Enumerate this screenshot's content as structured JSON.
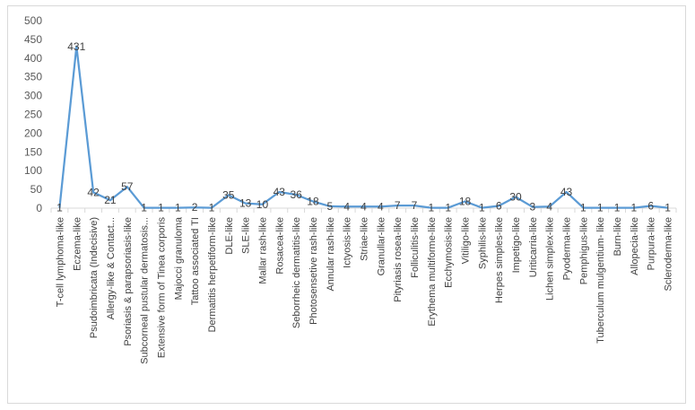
{
  "chart_data": {
    "type": "line",
    "title": "",
    "xlabel": "",
    "ylabel": "",
    "ylim": [
      0,
      500
    ],
    "yticks": [
      0,
      50,
      100,
      150,
      200,
      250,
      300,
      350,
      400,
      450,
      500
    ],
    "grid": false,
    "legend": "none",
    "line_color": "#5b9bd5",
    "categories": [
      "T-cell lymphoma-like",
      "Eczema-like",
      "Psudoimbricata (Indecisive)",
      "Allergy-like & Contact...",
      "Psoriasis & parapsoriasis-like",
      "Subcorneal pustular dermatosis...",
      "Extensive form of Tinea corporis",
      "Majocci granuloma",
      "Tattoo associated TI",
      "Dermatitis herpetiform-like",
      "DLE-like",
      "SLE-like",
      "Mallar rash-like",
      "Rosacea-like",
      "Seborrheic dermatitis-like",
      "Photosensetive rash-like",
      "Annular rash-like",
      "Ictyosis-like",
      "Striae-like",
      "Granullar-like",
      "Pityriasis rosea-like",
      "Folliculitis-like",
      "Erythema multiforme-like",
      "Ecchymosis-like",
      "Vitiligo-like",
      "Syphilis-like",
      "Herpes simples-like",
      "Impetigo-like",
      "Uriticarria-like",
      "Lichen simplex-like",
      "Pyoderma-like",
      "Pemphigus-like",
      "Tuberculum mulgentium- like",
      "Burn-like",
      "Allopecia-like",
      "Purpura-like",
      "Scleroderma-like"
    ],
    "values": [
      1,
      431,
      42,
      21,
      57,
      1,
      1,
      1,
      2,
      1,
      35,
      13,
      10,
      43,
      36,
      18,
      5,
      4,
      4,
      4,
      7,
      7,
      1,
      1,
      18,
      1,
      6,
      30,
      3,
      4,
      43,
      1,
      1,
      1,
      1,
      6,
      1
    ]
  }
}
